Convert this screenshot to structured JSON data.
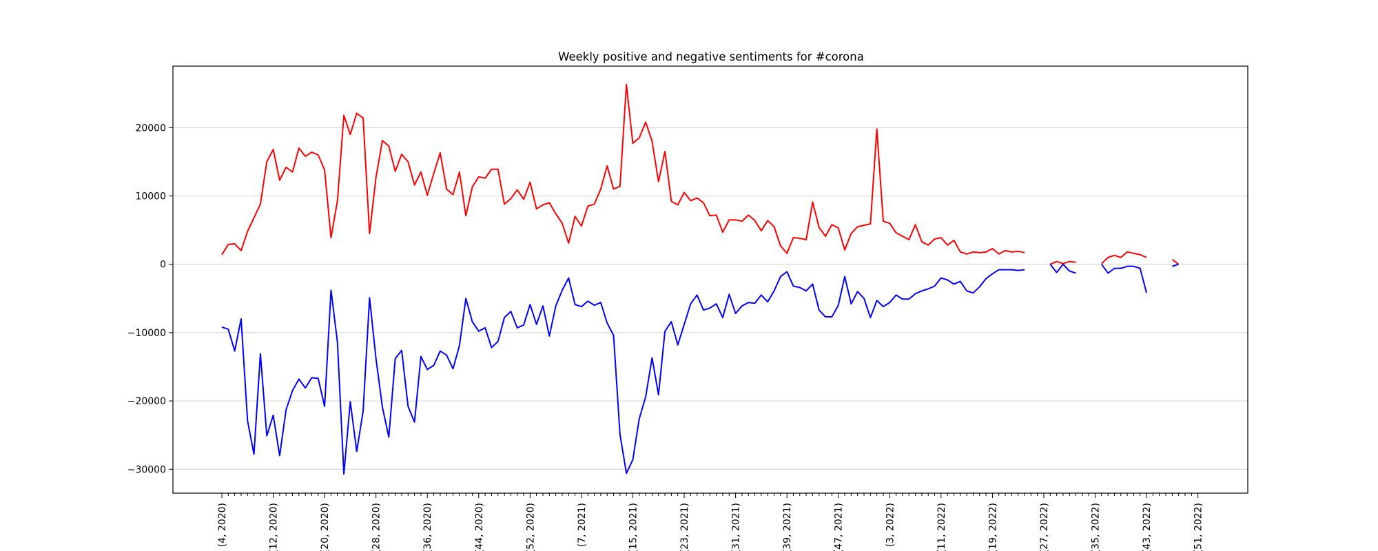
{
  "chart_data": {
    "type": "line",
    "title": "Weekly positive and negative sentiments for #corona",
    "xlabel": "",
    "ylabel": "",
    "ylim": [
      -33500,
      29000
    ],
    "yticks": [
      -30000,
      -20000,
      -10000,
      0,
      10000,
      20000
    ],
    "grid": "horizontal",
    "xtick_labels": [
      "(4, 2020)",
      "(12, 2020)",
      "(20, 2020)",
      "(28, 2020)",
      "(36, 2020)",
      "(44, 2020)",
      "(52, 2020)",
      "(7, 2021)",
      "(15, 2021)",
      "(23, 2021)",
      "(31, 2021)",
      "(39, 2021)",
      "(47, 2021)",
      "(3, 2022)",
      "(11, 2022)",
      "(19, 2022)",
      "(27, 2022)",
      "(35, 2022)",
      "(43, 2022)",
      "(51, 2022)"
    ],
    "week_start": "(4, 2020)",
    "series": [
      {
        "color": "#ff0000",
        "values": [
          1400,
          2900,
          3000,
          2000,
          4800,
          6800,
          8800,
          15000,
          16800,
          12300,
          14200,
          13500,
          17000,
          15800,
          16400,
          16000,
          13800,
          3900,
          9300,
          21800,
          19000,
          22100,
          21400,
          4500,
          12700,
          18100,
          17300,
          13600,
          16100,
          15000,
          11600,
          13500,
          10100,
          13300,
          16300,
          11000,
          10200,
          13500,
          7100,
          11300,
          12800,
          12600,
          13900,
          13900,
          8800,
          9600,
          10900,
          9500,
          12000,
          8100,
          8700,
          9000,
          7400,
          6000,
          3100,
          7000,
          5600,
          8500,
          8800,
          11000,
          14400,
          11000,
          11400,
          26300,
          17700,
          18500,
          20800,
          18000,
          12100,
          16500,
          9200,
          8700,
          10500,
          9300,
          9700,
          9000,
          7100,
          7200,
          4700,
          6500,
          6500,
          6300,
          7200,
          6400,
          4900,
          6400,
          5500,
          2700,
          1600,
          3900,
          3800,
          3600,
          9100,
          5400,
          4100,
          5800,
          5300,
          2100,
          4500,
          5500,
          5700,
          5900,
          19800,
          6300,
          6000,
          4600,
          4100,
          3600,
          5800,
          3300,
          2800,
          3700,
          3900,
          2800,
          3500,
          1800,
          1500,
          1800,
          1700,
          1800,
          2300,
          1500,
          2000,
          1800,
          1900,
          1700,
          null,
          null,
          null,
          0,
          400,
          100,
          400,
          300,
          null,
          null,
          null,
          100,
          1000,
          1300,
          1000,
          1800,
          1600,
          1400,
          1000,
          null,
          null,
          null,
          700,
          0
        ],
        "negative_values": [
          -9200,
          -9500,
          -12700,
          -8000,
          -22900,
          -27800,
          -13100,
          -25100,
          -22100,
          -28000,
          -21300,
          -18500,
          -16800,
          -18100,
          -16600,
          -16700,
          -20800,
          -3800,
          -11400,
          -30700,
          -20100,
          -27400,
          -21500,
          -4900,
          -13800,
          -20900,
          -25300,
          -13800,
          -12600,
          -20800,
          -23100,
          -13500,
          -15400,
          -14800,
          -12700,
          -13300,
          -15300,
          -11900,
          -5000,
          -8400,
          -9800,
          -9300,
          -12200,
          -11300,
          -7800,
          -6900,
          -9300,
          -8900,
          -5900,
          -8800,
          -6100,
          -10500,
          -6100,
          -3800,
          -2000,
          -5900,
          -6200,
          -5400,
          -6000,
          -5600,
          -8600,
          -10400,
          -24900,
          -30600,
          -28600,
          -22600,
          -19400,
          -13700,
          -19100,
          -9800,
          -8400,
          -11800,
          -8800,
          -5800,
          -4500,
          -6700,
          -6400,
          -5800,
          -7800,
          -4400,
          -7200,
          -6100,
          -5600,
          -5700,
          -4500,
          -5500,
          -3900,
          -1800,
          -1100,
          -3200,
          -3400,
          -3900,
          -2900,
          -6700,
          -7700,
          -7700,
          -6000,
          -1800,
          -5800,
          -4000,
          -5000,
          -7800,
          -5300,
          -6200,
          -5600,
          -4500,
          -5100,
          -5100,
          -4300,
          -3900,
          -3600,
          -3200,
          -2000,
          -2300,
          -2900,
          -2500,
          -3900,
          -4200,
          -3300,
          -2100,
          -1400,
          -800,
          -800,
          -800,
          -900,
          -800,
          null,
          null,
          null,
          0,
          -1200,
          0,
          -1000,
          -1300,
          null,
          null,
          null,
          0,
          -1300,
          -600,
          -600,
          -300,
          -300,
          -600,
          -4200,
          null,
          null,
          null,
          -300,
          0
        ]
      }
    ]
  }
}
